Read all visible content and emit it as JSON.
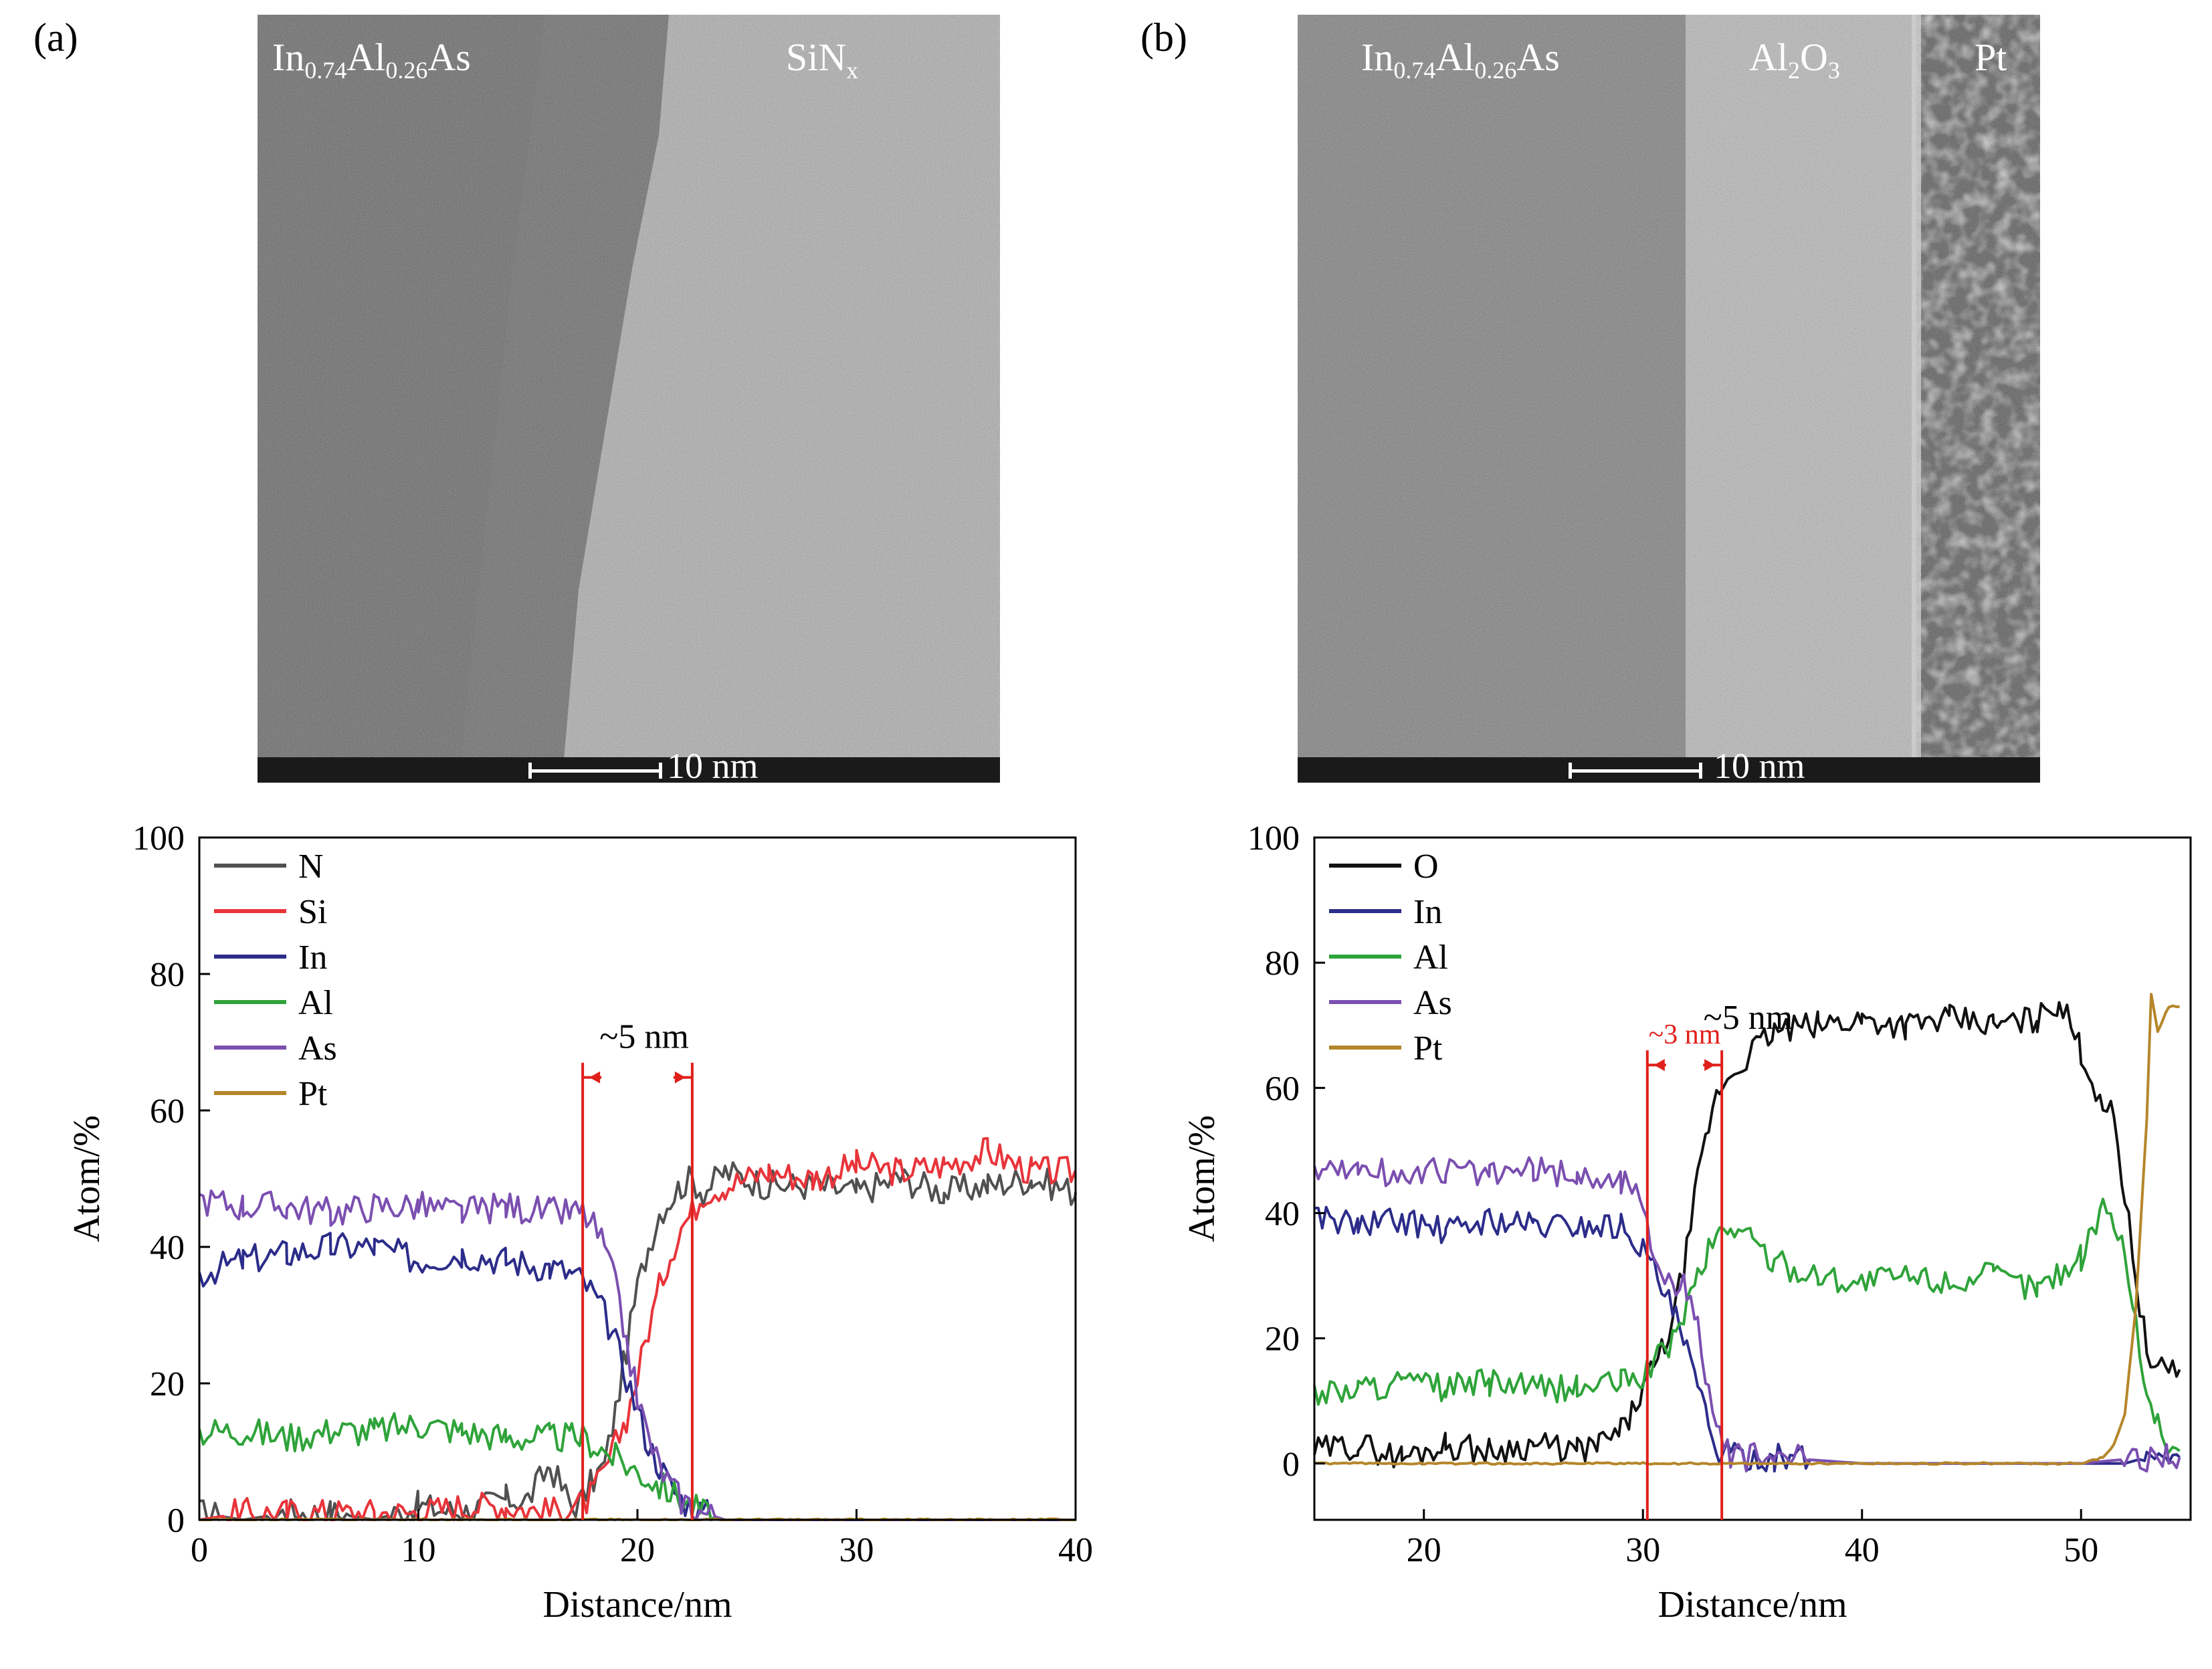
{
  "panels": {
    "a": {
      "label": "(a)",
      "tem": {
        "left_material": {
          "base": "In",
          "s1": "0.74",
          "mid": "Al",
          "s2": "0.26",
          "tail": "As"
        },
        "right_material": {
          "base": "SiN",
          "sub": "x"
        },
        "scale_label": "10 nm"
      }
    },
    "b": {
      "label": "(b)",
      "tem": {
        "left_material": {
          "base": "In",
          "s1": "0.74",
          "mid": "Al",
          "s2": "0.26",
          "tail": "As"
        },
        "middle_material": {
          "base": "Al",
          "s1": "2",
          "mid": "O",
          "s2": "3"
        },
        "right_material": {
          "base": "Pt"
        },
        "scale_label": "10 nm"
      }
    }
  },
  "colors": {
    "N": "#505050",
    "Si": "#e8343a",
    "In": "#2c2c8a",
    "Al": "#2fa33a",
    "As": "#7b4fb0",
    "Pt": "#b5862a",
    "O": "#111111",
    "marker": "#e0201b"
  },
  "chart_data": [
    {
      "type": "line",
      "xlabel": "Distance/nm",
      "ylabel": "Atom/%",
      "xlim": [
        0,
        40
      ],
      "ylim": [
        0,
        100
      ],
      "xticks": [
        "0",
        "10",
        "20",
        "30",
        "40"
      ],
      "yticks": [
        "0",
        "20",
        "40",
        "60",
        "80",
        "100"
      ],
      "legend": [
        "N",
        "Si",
        "In",
        "Al",
        "As",
        "Pt"
      ],
      "legend_position": "top-left",
      "series": [
        {
          "name": "N",
          "x": [
            0,
            2,
            4,
            6,
            8,
            10,
            12,
            14,
            15,
            16,
            17,
            17.5,
            18,
            18.5,
            19,
            19.5,
            20,
            20.5,
            21,
            21.5,
            22,
            22.5,
            23,
            24,
            26,
            28,
            30,
            32,
            34,
            36,
            38,
            40
          ],
          "y": [
            1,
            0,
            1,
            1,
            0,
            2,
            1,
            3,
            3,
            8,
            2,
            3,
            6,
            8,
            16,
            25,
            34,
            40,
            45,
            47,
            49,
            50,
            48,
            51,
            49,
            49,
            48,
            50,
            48,
            49,
            50,
            48
          ]
        },
        {
          "name": "Si",
          "x": [
            0,
            2,
            4,
            6,
            8,
            10,
            12,
            14,
            16,
            17,
            17.5,
            18,
            18.5,
            19,
            19.5,
            20,
            20.5,
            21,
            21.5,
            22,
            22.5,
            23,
            24,
            26,
            28,
            30,
            32,
            34,
            36,
            38,
            40
          ],
          "y": [
            0,
            1,
            1,
            1,
            1,
            1,
            2,
            2,
            1,
            2,
            2,
            4,
            7,
            11,
            15,
            21,
            28,
            34,
            39,
            43,
            45,
            48,
            49,
            51,
            50,
            52,
            51,
            52,
            54,
            51,
            51
          ]
        },
        {
          "name": "In",
          "x": [
            0,
            2,
            4,
            6,
            8,
            10,
            12,
            14,
            16,
            17,
            17.5,
            18,
            18.5,
            19,
            19.5,
            20,
            20.5,
            21,
            21.5,
            22,
            22.5,
            23,
            24,
            26,
            28,
            30,
            32,
            34,
            36,
            38,
            40
          ],
          "y": [
            36,
            38,
            39,
            40,
            40,
            38,
            39,
            38,
            37,
            36,
            35,
            33,
            30,
            26,
            21,
            16,
            11,
            8,
            5,
            3,
            2,
            1,
            0,
            0,
            0,
            0,
            0,
            0,
            0,
            0,
            0
          ]
        },
        {
          "name": "Al",
          "x": [
            0,
            2,
            4,
            6,
            8,
            10,
            12,
            14,
            16,
            17,
            17.5,
            18,
            18.5,
            19,
            19.5,
            20,
            20.5,
            21,
            21.5,
            22,
            22.5,
            23,
            24,
            26,
            28,
            30,
            32,
            34,
            36,
            38,
            40
          ],
          "y": [
            13,
            13,
            12,
            13,
            13,
            14,
            13,
            12,
            12,
            12,
            12,
            11,
            10,
            9,
            8,
            7,
            6,
            5,
            4,
            3,
            2,
            1,
            0,
            0,
            0,
            0,
            0,
            0,
            0,
            0,
            0
          ]
        },
        {
          "name": "As",
          "x": [
            0,
            2,
            4,
            6,
            8,
            10,
            12,
            14,
            16,
            17,
            17.5,
            18,
            18.5,
            19,
            19.5,
            20,
            20.5,
            21,
            21.5,
            22,
            22.5,
            23,
            24,
            26,
            28,
            30,
            32,
            34,
            36,
            38,
            40
          ],
          "y": [
            47,
            46,
            46,
            45,
            46,
            46,
            45,
            46,
            45,
            45,
            45,
            43,
            40,
            34,
            26,
            18,
            12,
            8,
            5,
            3,
            2,
            1,
            0,
            0,
            0,
            0,
            0,
            0,
            0,
            0,
            0
          ]
        },
        {
          "name": "Pt",
          "x": [
            0,
            5,
            10,
            15,
            20,
            25,
            30,
            35,
            40
          ],
          "y": [
            0,
            0,
            0,
            0,
            0,
            0,
            0,
            0,
            0
          ]
        }
      ],
      "annotations": [
        {
          "text": "~5 nm",
          "from": 17.5,
          "to": 22.5,
          "color": "#e0201b"
        }
      ]
    },
    {
      "type": "line",
      "xlabel": "Distance/nm",
      "ylabel": "Atom/%",
      "xlim": [
        15,
        55
      ],
      "ylim": [
        -9,
        100
      ],
      "xticks": [
        "20",
        "30",
        "40",
        "50"
      ],
      "yticks": [
        "0",
        "20",
        "40",
        "60",
        "80",
        "100"
      ],
      "legend": [
        "O",
        "In",
        "Al",
        "As",
        "Pt"
      ],
      "legend_position": "top-left",
      "series": [
        {
          "name": "O",
          "x": [
            15,
            17,
            19,
            21,
            23,
            25,
            27,
            28,
            29,
            29.5,
            30,
            30.5,
            31,
            31.5,
            32,
            32.5,
            33,
            33.5,
            34,
            35,
            36,
            38,
            40,
            42,
            44,
            46,
            48,
            49,
            50,
            50.5,
            51,
            51.5,
            52,
            52.5,
            53,
            53.5,
            54,
            54.5
          ],
          "y": [
            2,
            3,
            1,
            3,
            2,
            3,
            2,
            3,
            5,
            8,
            12,
            15,
            19,
            25,
            34,
            45,
            54,
            60,
            62,
            66,
            69,
            70,
            71,
            70,
            71,
            70,
            71,
            74,
            66,
            61,
            58,
            55,
            43,
            30,
            18,
            14,
            16,
            15
          ]
        },
        {
          "name": "In",
          "x": [
            15,
            17,
            19,
            21,
            23,
            25,
            27,
            29,
            29.5,
            30,
            30.5,
            31,
            31.5,
            32,
            32.5,
            33,
            33.5,
            34,
            36,
            40,
            45,
            50,
            52,
            53,
            54,
            54.5
          ],
          "y": [
            40,
            38,
            39,
            37,
            39,
            38,
            38,
            38,
            37,
            34,
            31,
            27,
            23,
            18,
            12,
            6,
            2,
            1,
            1,
            0,
            0,
            0,
            0,
            1,
            2,
            1
          ]
        },
        {
          "name": "Al",
          "x": [
            15,
            17,
            19,
            21,
            23,
            25,
            27,
            29,
            30,
            30.5,
            31,
            31.5,
            32,
            32.5,
            33,
            33.5,
            34,
            35,
            36,
            38,
            40,
            42,
            44,
            46,
            48,
            50,
            50.5,
            51,
            51.5,
            52,
            52.5,
            53,
            53.5,
            54,
            54.5
          ],
          "y": [
            11,
            12,
            13,
            12,
            13,
            12,
            12,
            13,
            14,
            16,
            18,
            21,
            25,
            30,
            34,
            37,
            38,
            36,
            32,
            30,
            29,
            30,
            29,
            30,
            28,
            33,
            38,
            40,
            39,
            34,
            22,
            12,
            6,
            3,
            2
          ]
        },
        {
          "name": "As",
          "x": [
            15,
            17,
            19,
            21,
            23,
            25,
            27,
            29,
            29.5,
            30,
            30.5,
            31,
            31.5,
            32,
            32.5,
            33,
            33.5,
            34,
            36,
            40,
            45,
            50,
            53,
            54,
            54.5
          ],
          "y": [
            47,
            47,
            46,
            47,
            46,
            47,
            46,
            45,
            45,
            40,
            34,
            30,
            29,
            28,
            22,
            12,
            4,
            1,
            1,
            0,
            0,
            0,
            1,
            2,
            1
          ]
        },
        {
          "name": "Pt",
          "x": [
            15,
            20,
            25,
            30,
            35,
            40,
            45,
            50,
            51,
            51.5,
            52,
            52.5,
            53,
            53.2,
            53.5,
            54,
            54.5
          ],
          "y": [
            0,
            0,
            0,
            0,
            0,
            0,
            0,
            0,
            1,
            3,
            8,
            25,
            55,
            75,
            69,
            73,
            73
          ]
        }
      ],
      "annotations": [
        {
          "text": "~3 nm",
          "from": 30.2,
          "to": 33.6,
          "color": "#e0201b"
        },
        {
          "text": "~5 nm",
          "color": "#000000"
        }
      ]
    }
  ]
}
